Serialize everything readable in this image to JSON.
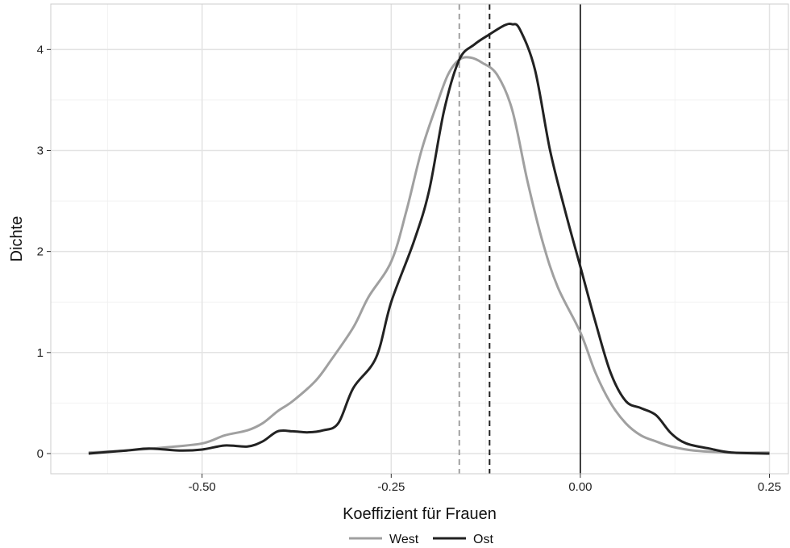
{
  "chart_data": {
    "type": "line",
    "title": "",
    "xlabel": "Koeffizient für Frauen",
    "ylabel": "Dichte",
    "xlim": [
      -0.7,
      0.275
    ],
    "ylim": [
      -0.2,
      4.45
    ],
    "x_ticks": [
      -0.5,
      -0.25,
      0.0,
      0.25
    ],
    "x_tick_labels": [
      "-0.50",
      "-0.25",
      "0.00",
      "0.25"
    ],
    "y_ticks": [
      0,
      1,
      2,
      3,
      4
    ],
    "y_tick_labels": [
      "0",
      "1",
      "2",
      "3",
      "4"
    ],
    "grid": true,
    "legend_position": "bottom",
    "series": [
      {
        "name": "West",
        "color": "#a0a0a0",
        "mean_line_x": -0.16,
        "points": [
          [
            -0.65,
            0.01
          ],
          [
            -0.6,
            0.03
          ],
          [
            -0.55,
            0.06
          ],
          [
            -0.5,
            0.1
          ],
          [
            -0.47,
            0.18
          ],
          [
            -0.44,
            0.23
          ],
          [
            -0.42,
            0.3
          ],
          [
            -0.4,
            0.42
          ],
          [
            -0.38,
            0.52
          ],
          [
            -0.35,
            0.72
          ],
          [
            -0.33,
            0.92
          ],
          [
            -0.3,
            1.25
          ],
          [
            -0.28,
            1.55
          ],
          [
            -0.25,
            1.9
          ],
          [
            -0.23,
            2.4
          ],
          [
            -0.21,
            3.0
          ],
          [
            -0.19,
            3.45
          ],
          [
            -0.175,
            3.75
          ],
          [
            -0.16,
            3.9
          ],
          [
            -0.145,
            3.92
          ],
          [
            -0.13,
            3.87
          ],
          [
            -0.11,
            3.75
          ],
          [
            -0.09,
            3.4
          ],
          [
            -0.07,
            2.7
          ],
          [
            -0.05,
            2.1
          ],
          [
            -0.03,
            1.65
          ],
          [
            0.0,
            1.2
          ],
          [
            0.02,
            0.8
          ],
          [
            0.04,
            0.5
          ],
          [
            0.06,
            0.3
          ],
          [
            0.08,
            0.18
          ],
          [
            0.1,
            0.12
          ],
          [
            0.12,
            0.07
          ],
          [
            0.15,
            0.03
          ],
          [
            0.2,
            0.01
          ],
          [
            0.25,
            0.01
          ]
        ]
      },
      {
        "name": "Ost",
        "color": "#222222",
        "mean_line_x": -0.12,
        "points": [
          [
            -0.65,
            0.0
          ],
          [
            -0.6,
            0.03
          ],
          [
            -0.57,
            0.05
          ],
          [
            -0.53,
            0.03
          ],
          [
            -0.5,
            0.04
          ],
          [
            -0.47,
            0.08
          ],
          [
            -0.44,
            0.07
          ],
          [
            -0.42,
            0.12
          ],
          [
            -0.4,
            0.22
          ],
          [
            -0.38,
            0.22
          ],
          [
            -0.36,
            0.21
          ],
          [
            -0.34,
            0.23
          ],
          [
            -0.32,
            0.3
          ],
          [
            -0.3,
            0.65
          ],
          [
            -0.27,
            0.95
          ],
          [
            -0.25,
            1.5
          ],
          [
            -0.22,
            2.1
          ],
          [
            -0.2,
            2.6
          ],
          [
            -0.18,
            3.4
          ],
          [
            -0.16,
            3.9
          ],
          [
            -0.14,
            4.05
          ],
          [
            -0.12,
            4.15
          ],
          [
            -0.1,
            4.24
          ],
          [
            -0.09,
            4.25
          ],
          [
            -0.08,
            4.2
          ],
          [
            -0.06,
            3.8
          ],
          [
            -0.04,
            3.0
          ],
          [
            -0.02,
            2.4
          ],
          [
            0.0,
            1.85
          ],
          [
            0.02,
            1.3
          ],
          [
            0.04,
            0.8
          ],
          [
            0.06,
            0.52
          ],
          [
            0.08,
            0.45
          ],
          [
            0.1,
            0.38
          ],
          [
            0.12,
            0.2
          ],
          [
            0.14,
            0.1
          ],
          [
            0.17,
            0.05
          ],
          [
            0.2,
            0.01
          ],
          [
            0.25,
            0.0
          ]
        ]
      }
    ],
    "reference_line_x": 0.0
  },
  "colors": {
    "panel_border": "#cccccc",
    "grid_major": "#e3e3e3",
    "grid_minor": "#f2f2f2",
    "reference_line": "#000000"
  }
}
